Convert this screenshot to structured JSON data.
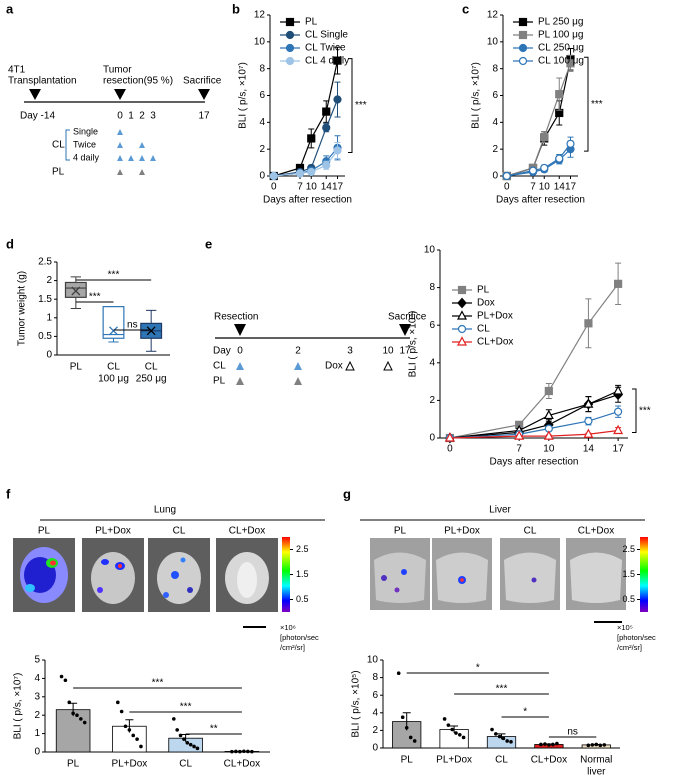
{
  "panel_labels": [
    "a",
    "b",
    "c",
    "d",
    "e",
    "f",
    "g"
  ],
  "schematic_a": {
    "transplant": [
      "4T1",
      "Transplantation"
    ],
    "resection": [
      "Tumor",
      "resection(95 %)"
    ],
    "sacrifice": "Sacrifice",
    "day_start": "Day -14",
    "days": [
      0,
      1,
      2,
      3
    ],
    "day_end": 17,
    "group_cl": "CL",
    "regimens": [
      "Single",
      "Twice",
      "4 daily"
    ],
    "group_pl": "PL"
  },
  "schematic_e": {
    "resection": "Resection",
    "sacrifice": "Sacrifice",
    "day": "Day",
    "days": [
      0,
      2,
      3,
      10,
      17
    ],
    "groups": [
      "CL",
      "PL"
    ],
    "drug": "Dox"
  },
  "lung": {
    "title": "Lung",
    "labels": [
      "PL",
      "PL+Dox",
      "CL",
      "CL+Dox"
    ],
    "clim": [
      0,
      3
    ],
    "cticks": [
      0.5,
      1.5,
      2.5
    ],
    "unit": [
      "×10⁶",
      "[photon/sec",
      "/cm²/sr]"
    ]
  },
  "liver": {
    "title": "Liver",
    "labels": [
      "PL",
      "PL+Dox",
      "CL",
      "CL+Dox"
    ],
    "clim": [
      0,
      3
    ],
    "cticks": [
      0.5,
      1.5,
      2.5
    ],
    "unit": [
      "×10⁵",
      "[photon/sec",
      "/cm²/sr]"
    ]
  },
  "chart_data": [
    {
      "type": "line",
      "ylabel": "BLI ( p/s, ×10⁷)",
      "xlabel": "Days after resection",
      "x": [
        0,
        7,
        10,
        14,
        17
      ],
      "xlim": [
        -1,
        19
      ],
      "xticks": [
        0,
        7,
        10,
        14,
        17
      ],
      "ylim": [
        0,
        12
      ],
      "yticks": [
        0,
        2,
        4,
        6,
        8,
        10,
        12
      ],
      "legend": "upper left",
      "annotation": "***",
      "series": [
        {
          "name": "PL",
          "color": "#000000",
          "marker": "square",
          "filled": true,
          "values": [
            0,
            0.6,
            2.8,
            4.8,
            8.6
          ],
          "errors": [
            0,
            0.2,
            0.7,
            0.8,
            1.0
          ]
        },
        {
          "name": "CL Single",
          "color": "#1f4e79",
          "marker": "circle",
          "filled": true,
          "values": [
            0,
            0.3,
            0.6,
            3.6,
            5.7
          ],
          "errors": [
            0,
            0.1,
            0.2,
            0.3,
            1.3
          ]
        },
        {
          "name": "CL Twice",
          "color": "#2e75b6",
          "marker": "circle",
          "filled": true,
          "values": [
            0,
            0.2,
            0.4,
            1.1,
            2.1
          ],
          "errors": [
            0,
            0.1,
            0.1,
            0.4,
            0.9
          ]
        },
        {
          "name": "CL 4 daily",
          "color": "#9dc3e6",
          "marker": "circle",
          "filled": true,
          "values": [
            0,
            0.2,
            0.3,
            0.8,
            1.9
          ],
          "errors": [
            0,
            0.1,
            0.1,
            0.3,
            0.6
          ]
        }
      ]
    },
    {
      "type": "line",
      "ylabel": "BLI ( p/s, ×10⁷)",
      "xlabel": "Days after resection",
      "x": [
        0,
        7,
        10,
        14,
        17
      ],
      "xlim": [
        -1,
        19
      ],
      "xticks": [
        0,
        7,
        10,
        14,
        17
      ],
      "ylim": [
        0,
        12
      ],
      "yticks": [
        0,
        2,
        4,
        6,
        8,
        10,
        12
      ],
      "legend": "upper left",
      "annotation": "***",
      "series": [
        {
          "name": "PL 250 μg",
          "color": "#000000",
          "marker": "square",
          "filled": true,
          "values": [
            0,
            0.6,
            2.8,
            4.7,
            8.7
          ],
          "errors": [
            0,
            0.2,
            0.5,
            0.9,
            0.8
          ]
        },
        {
          "name": "PL 100 μg",
          "color": "#808080",
          "marker": "square",
          "filled": true,
          "values": [
            0,
            0.6,
            2.9,
            6.1,
            8.4
          ],
          "errors": [
            0,
            0.2,
            0.4,
            1.2,
            0.6
          ]
        },
        {
          "name": "CL 250 μg",
          "color": "#2e75b6",
          "marker": "circle",
          "filled": true,
          "values": [
            0,
            0.3,
            0.5,
            1.2,
            2.0
          ],
          "errors": [
            0,
            0.1,
            0.2,
            0.3,
            0.6
          ]
        },
        {
          "name": "CL 100 μg",
          "color": "#2e75b6",
          "marker": "circle",
          "filled": false,
          "values": [
            0,
            0.4,
            0.6,
            1.3,
            2.4
          ],
          "errors": [
            0,
            0.1,
            0.2,
            0.3,
            0.5
          ]
        }
      ]
    },
    {
      "type": "box",
      "ylabel": "Tumor weight (g)",
      "categories": [
        "PL",
        "CL",
        "CL"
      ],
      "sublabels": [
        null,
        "100 μg",
        "250 μg"
      ],
      "ylim": [
        0,
        2.5
      ],
      "yticks": [
        0,
        0.5,
        1,
        1.5,
        2,
        2.5
      ],
      "colors": [
        "#a6a6a6",
        "#ffffff",
        "#2e75b6"
      ],
      "edgecolors": [
        "#404040",
        "#2e75b6",
        "#1f3864"
      ],
      "boxes": [
        {
          "min": 1.25,
          "q1": 1.55,
          "median": 1.8,
          "q3": 1.95,
          "max": 2.1,
          "mean": 1.72
        },
        {
          "min": 0.35,
          "q1": 0.45,
          "median": 0.55,
          "q3": 1.3,
          "max": 1.3,
          "mean": 0.65
        },
        {
          "min": 0.1,
          "q1": 0.45,
          "median": 0.65,
          "q3": 0.85,
          "max": 1.2,
          "mean": 0.65
        }
      ],
      "annotations": [
        "***",
        "***",
        "ns"
      ]
    },
    {
      "type": "line",
      "ylabel": "BLI ( p/s, ×10⁷)",
      "xlabel": "Days after resection",
      "x": [
        0,
        7,
        10,
        14,
        17
      ],
      "xlim": [
        -1,
        18
      ],
      "xticks": [
        0,
        7,
        10,
        14,
        17
      ],
      "ylim": [
        0,
        10
      ],
      "yticks": [
        0,
        2,
        4,
        6,
        8,
        10
      ],
      "legend": "upper left",
      "annotation": "***",
      "series": [
        {
          "name": "PL",
          "color": "#808080",
          "marker": "square",
          "filled": true,
          "values": [
            0,
            0.7,
            2.5,
            6.1,
            8.2
          ],
          "errors": [
            0,
            0.1,
            0.4,
            1.3,
            1.1
          ]
        },
        {
          "name": "Dox",
          "color": "#000000",
          "marker": "diamond",
          "filled": true,
          "values": [
            0,
            0.3,
            0.7,
            1.8,
            2.3
          ],
          "errors": [
            0,
            0.1,
            0.3,
            0.4,
            0.4
          ]
        },
        {
          "name": "PL+Dox",
          "color": "#000000",
          "marker": "triangle",
          "filled": false,
          "values": [
            0,
            0.4,
            1.2,
            1.8,
            2.5
          ],
          "errors": [
            0,
            0.1,
            0.3,
            0.4,
            0.3
          ]
        },
        {
          "name": "CL",
          "color": "#2e75b6",
          "marker": "circle",
          "filled": false,
          "values": [
            0,
            0.2,
            0.5,
            0.9,
            1.4
          ],
          "errors": [
            0,
            0.05,
            0.1,
            0.2,
            0.3
          ]
        },
        {
          "name": "CL+Dox",
          "color": "#e02020",
          "marker": "triangle",
          "filled": false,
          "values": [
            0,
            0.1,
            0.1,
            0.2,
            0.4
          ],
          "errors": [
            0,
            0.03,
            0.05,
            0.05,
            0.15
          ]
        }
      ]
    },
    {
      "type": "bar",
      "ylabel": "BLI ( p/s, ×10⁷)",
      "categories": [
        "PL",
        "PL+Dox",
        "CL",
        "CL+Dox"
      ],
      "ylim": [
        0,
        5
      ],
      "yticks": [
        0,
        1,
        2,
        3,
        4,
        5
      ],
      "colors": [
        "#a6a6a6",
        "#ffffff",
        "#bdd7ee",
        "#595959"
      ],
      "values": [
        2.3,
        1.4,
        0.75,
        0.03
      ],
      "errors": [
        0.35,
        0.35,
        0.2,
        0.01
      ],
      "points": [
        [
          4.1,
          3.9,
          2.7,
          2.1,
          2.0,
          1.8,
          1.6
        ],
        [
          2.7,
          2.2,
          1.4,
          1.2,
          0.9,
          0.7,
          0.3
        ],
        [
          1.8,
          1.2,
          0.9,
          0.7,
          0.5,
          0.4,
          0.3,
          0.2
        ],
        [
          0.02,
          0.03,
          0.02,
          0.04,
          0.03,
          0.02
        ]
      ],
      "annotations": [
        "***",
        "***",
        "**"
      ]
    },
    {
      "type": "bar",
      "ylabel": "BLI ( p/s, ×10⁵)",
      "categories": [
        "PL",
        "PL+Dox",
        "CL",
        "CL+Dox",
        "Normal"
      ],
      "sublabels": [
        null,
        null,
        null,
        null,
        "liver"
      ],
      "ylim": [
        0,
        10
      ],
      "yticks": [
        0,
        2,
        4,
        6,
        8,
        10
      ],
      "colors": [
        "#a6a6a6",
        "#ffffff",
        "#bdd7ee",
        "#e02020",
        "#f4e6c8"
      ],
      "values": [
        3.0,
        2.1,
        1.3,
        0.4,
        0.35
      ],
      "errors": [
        1.0,
        0.4,
        0.3,
        0.05,
        0.05
      ],
      "points": [
        [
          8.5,
          3.5,
          2.3,
          1.2,
          0.8
        ],
        [
          3.3,
          2.6,
          2.1,
          1.7,
          1.5,
          1.2
        ],
        [
          2.1,
          1.6,
          1.3,
          1.1,
          0.8,
          0.7
        ],
        [
          0.4,
          0.45,
          0.35,
          0.4,
          0.5
        ],
        [
          0.3,
          0.35,
          0.4,
          0.3,
          0.35
        ]
      ],
      "annotations": [
        "*",
        "***",
        "*",
        "ns"
      ]
    }
  ]
}
